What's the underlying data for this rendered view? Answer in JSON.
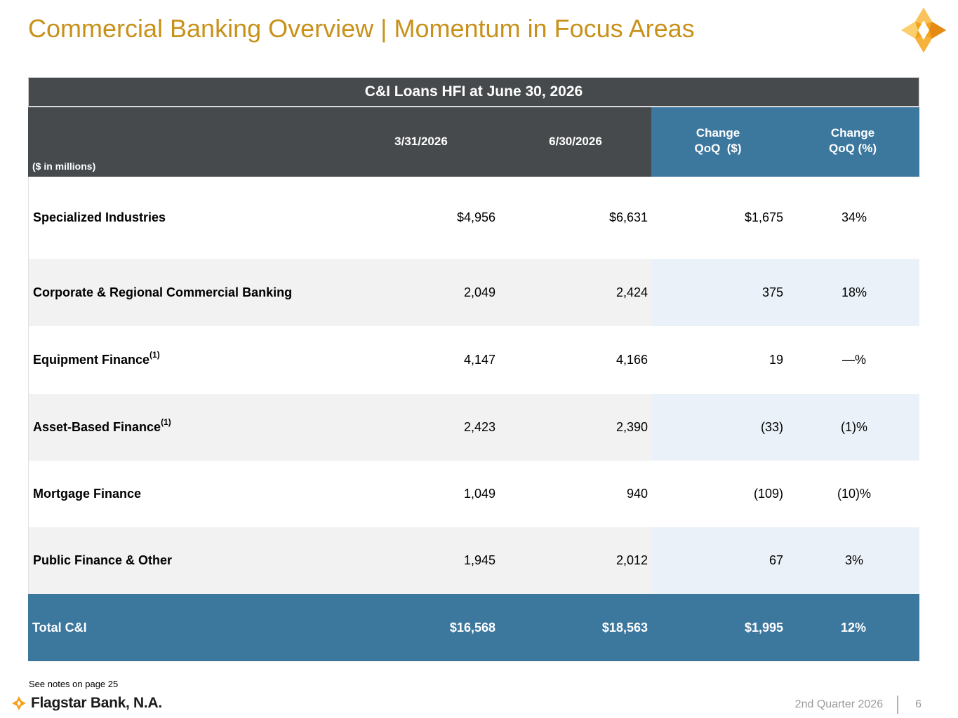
{
  "page": {
    "title": "Commercial Banking Overview | Momentum in Focus Areas",
    "footnote": "See notes on page 25",
    "brand": "Flagstar Bank, N.A.",
    "quarter": "2nd Quarter 2026",
    "page_number": "6",
    "colors": {
      "title": "#C8911A",
      "dark_header": "#464A4C",
      "blue_header": "#3C779E",
      "logo_gold": "#F4A21C"
    }
  },
  "table": {
    "title": "C&I Loans HFI at June 30, 2026",
    "units": "($ in millions)",
    "columns": [
      "3/31/2026",
      "6/30/2026",
      "Change\nQoQ  ($)",
      "Change\nQoQ (%)"
    ],
    "col_change_dollar_line1": "Change",
    "col_change_dollar_line2": "QoQ  ($)",
    "col_change_pct_line1": "Change",
    "col_change_pct_line2": "QoQ (%)",
    "rows": [
      {
        "label": "Specialized Industries",
        "sup": "",
        "q1": "$4,956",
        "q2": "$6,631",
        "chg": "$1,675",
        "pct": "34%"
      },
      {
        "label": "Corporate & Regional Commercial Banking",
        "sup": "",
        "q1": "2,049",
        "q2": "2,424",
        "chg": "375",
        "pct": "18%"
      },
      {
        "label": "Equipment Finance",
        "sup": "(1)",
        "q1": "4,147",
        "q2": "4,166",
        "chg": "19",
        "pct": "—%"
      },
      {
        "label": "Asset-Based Finance",
        "sup": "(1)",
        "q1": "2,423",
        "q2": "2,390",
        "chg": "(33)",
        "pct": "(1)%"
      },
      {
        "label": "Mortgage Finance",
        "sup": "",
        "q1": "1,049",
        "q2": "940",
        "chg": "(109)",
        "pct": "(10)%"
      },
      {
        "label": "Public Finance & Other",
        "sup": "",
        "q1": "1,945",
        "q2": "2,012",
        "chg": "67",
        "pct": "3%"
      }
    ],
    "total": {
      "label": "Total C&I",
      "q1": "$16,568",
      "q2": "$18,563",
      "chg": "$1,995",
      "pct": "12%"
    }
  }
}
